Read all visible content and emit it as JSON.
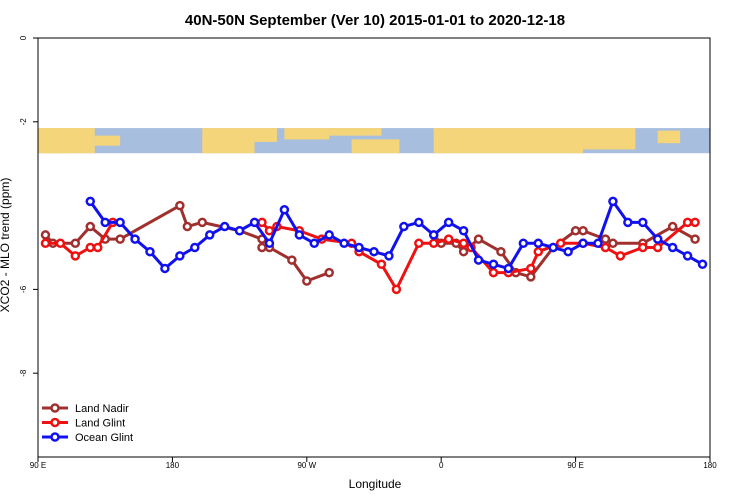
{
  "chart_data": {
    "type": "line",
    "title": "40N-50N September (Ver 10)   2015-01-01 to 2020-12-18",
    "xlabel": "Longitude",
    "ylabel": "XCO2 - MLO trend (ppm)",
    "xlim": [
      90,
      540
    ],
    "ylim": [
      -10,
      0
    ],
    "x_ticks": [
      {
        "value": 90,
        "label": "90 E"
      },
      {
        "value": 180,
        "label": "180"
      },
      {
        "value": 270,
        "label": "90 W"
      },
      {
        "value": 360,
        "label": "0"
      },
      {
        "value": 450,
        "label": "90 E"
      },
      {
        "value": 540,
        "label": "180"
      }
    ],
    "y_ticks": [
      {
        "value": 0,
        "label": "0"
      },
      {
        "value": -2,
        "label": "-2"
      },
      {
        "value": -6,
        "label": "-6"
      },
      {
        "value": -8,
        "label": "-8"
      }
    ],
    "legend_position": "bottom-left",
    "map_band": {
      "y_top": -2.15,
      "y_bottom": -2.75,
      "land_color": "#f5d57a",
      "ocean_color": "#a8bedf"
    },
    "series": [
      {
        "name": "Land Nadir",
        "color": "#a0302e",
        "x": [
          95,
          100,
          115,
          125,
          135,
          145,
          185,
          190,
          200,
          225,
          240,
          240,
          245,
          260,
          270,
          285,
          355,
          360,
          370,
          375,
          385,
          400,
          410,
          420,
          435,
          450,
          455,
          470,
          475,
          495,
          515,
          530
        ],
        "y": [
          -4.7,
          -4.9,
          -4.9,
          -4.5,
          -4.8,
          -4.8,
          -4.0,
          -4.5,
          -4.4,
          -4.6,
          -4.8,
          -5.0,
          -5.0,
          -5.3,
          -5.8,
          -5.6,
          -4.7,
          -4.9,
          -4.9,
          -5.1,
          -4.8,
          -5.1,
          -5.6,
          -5.7,
          -5.0,
          -4.6,
          -4.6,
          -4.8,
          -4.9,
          -4.9,
          -4.5,
          -4.8
        ]
      },
      {
        "name": "Land Glint",
        "color": "#ee1111",
        "x": [
          95,
          105,
          115,
          125,
          130,
          140,
          240,
          245,
          250,
          265,
          280,
          300,
          305,
          320,
          330,
          345,
          355,
          365,
          375,
          380,
          395,
          405,
          420,
          425,
          440,
          455,
          470,
          480,
          495,
          505,
          525,
          530
        ],
        "y": [
          -4.9,
          -4.9,
          -5.2,
          -5.0,
          -5.0,
          -4.4,
          -4.4,
          -4.6,
          -4.5,
          -4.6,
          -4.8,
          -4.9,
          -5.1,
          -5.4,
          -6.0,
          -4.9,
          -4.9,
          -4.8,
          -4.9,
          -5.0,
          -5.6,
          -5.6,
          -5.5,
          -5.1,
          -4.9,
          -4.9,
          -5.0,
          -5.2,
          -5.0,
          -5.0,
          -4.4,
          -4.4
        ]
      },
      {
        "name": "Ocean Glint",
        "color": "#1111ee",
        "x": [
          125,
          135,
          145,
          155,
          165,
          175,
          185,
          195,
          205,
          215,
          225,
          235,
          245,
          255,
          265,
          275,
          285,
          295,
          305,
          315,
          325,
          335,
          345,
          355,
          365,
          375,
          385,
          395,
          405,
          415,
          425,
          435,
          445,
          455,
          465,
          475,
          485,
          495,
          505,
          515,
          525,
          535
        ],
        "y": [
          -3.9,
          -4.4,
          -4.4,
          -4.8,
          -5.1,
          -5.5,
          -5.2,
          -5.0,
          -4.7,
          -4.5,
          -4.6,
          -4.4,
          -4.9,
          -4.1,
          -4.7,
          -4.9,
          -4.7,
          -4.9,
          -5.0,
          -5.1,
          -5.2,
          -4.5,
          -4.4,
          -4.7,
          -4.4,
          -4.6,
          -5.3,
          -5.4,
          -5.5,
          -4.9,
          -4.9,
          -5.0,
          -5.1,
          -4.9,
          -4.9,
          -3.9,
          -4.4,
          -4.4,
          -4.8,
          -5.0,
          -5.2,
          -5.4
        ]
      }
    ]
  }
}
